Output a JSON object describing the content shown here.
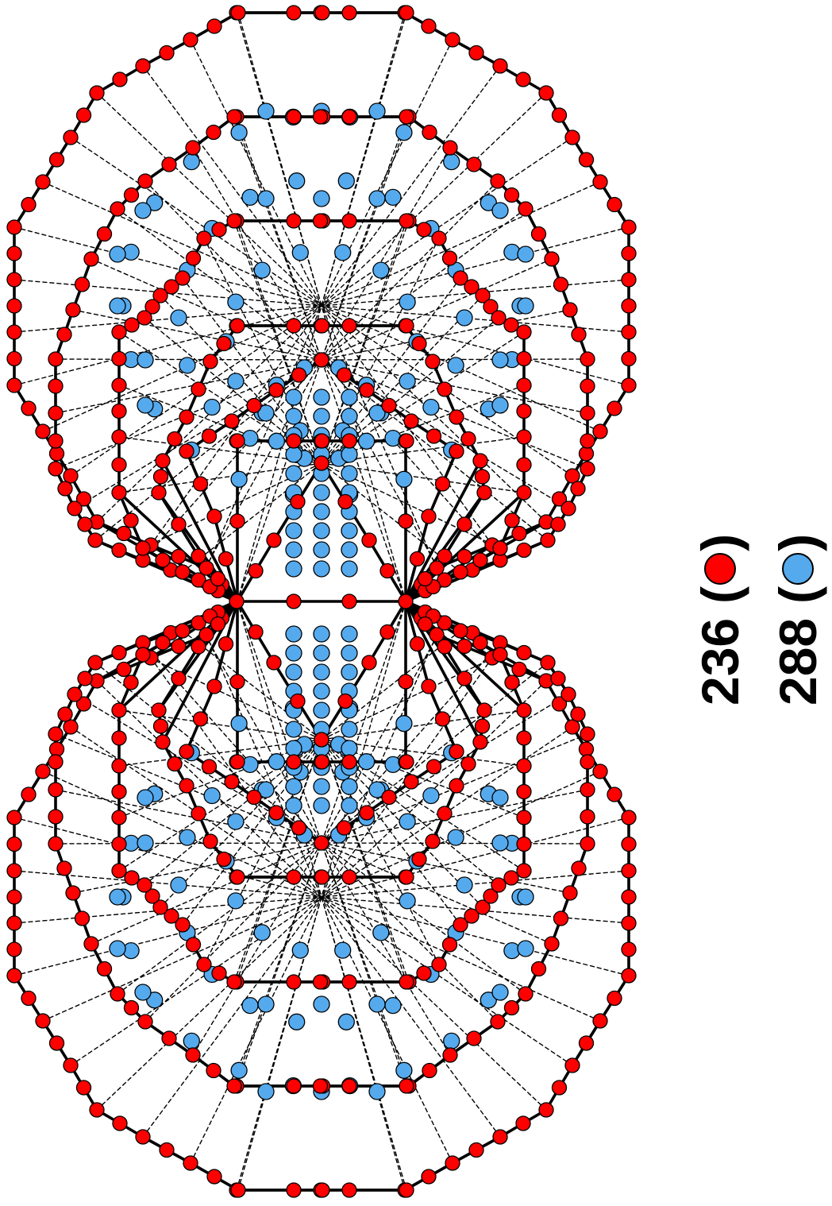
{
  "legend": [
    {
      "count": "236",
      "open": "(",
      "close": ")",
      "color": "#ff0000",
      "swatch_name": "red-dot-icon"
    },
    {
      "count": "288",
      "open": "(",
      "close": ")",
      "color": "#55aaee",
      "swatch_name": "blue-dot-icon"
    }
  ],
  "colors": {
    "edge": "#000000",
    "red_vertex": "#ff0000",
    "blue_point": "#55aaee",
    "background": "#ffffff"
  }
}
